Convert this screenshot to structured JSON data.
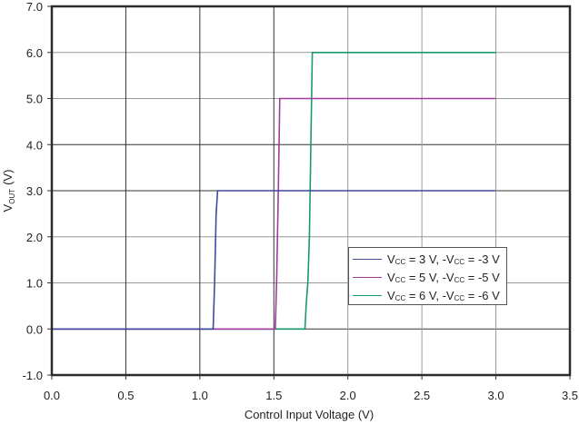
{
  "chart_data": {
    "type": "line",
    "title": "",
    "xlabel": "Control Input Voltage (V)",
    "ylabel": "V_OUT (V)",
    "ylabel_main": "V",
    "ylabel_sub": "OUT",
    "ylabel_suffix": "(V)",
    "xlim": [
      0.0,
      3.5
    ],
    "ylim": [
      -1.0,
      7.0
    ],
    "x_ticks": [
      "0.0",
      "0.5",
      "1.0",
      "1.5",
      "2.0",
      "2.5",
      "3.0",
      "3.5"
    ],
    "y_ticks": [
      "-1.0",
      "0.0",
      "1.0",
      "2.0",
      "3.0",
      "4.0",
      "5.0",
      "6.0",
      "7.0"
    ],
    "grid": true,
    "legend_position": "inside lower right",
    "series": [
      {
        "name": "VCC = 3 V, -VCC = -3 V",
        "color": "#3f4a9c",
        "x": [
          0.0,
          1.09,
          1.1,
          1.11,
          1.12,
          3.0
        ],
        "y": [
          0.0,
          0.0,
          1.0,
          2.5,
          3.0,
          3.0
        ]
      },
      {
        "name": "VCC = 5 V, -VCC = -5 V",
        "color": "#a03c9c",
        "x": [
          0.0,
          1.51,
          1.52,
          1.53,
          1.54,
          3.0
        ],
        "y": [
          0.0,
          0.0,
          1.2,
          3.0,
          5.0,
          5.0
        ]
      },
      {
        "name": "VCC = 6 V, -VCC = -6 V",
        "color": "#1a9a6a",
        "x": [
          0.0,
          1.71,
          1.72,
          1.73,
          1.74,
          1.75,
          1.76,
          3.0
        ],
        "y": [
          0.0,
          0.0,
          0.6,
          1.0,
          2.0,
          4.0,
          6.0,
          6.0
        ]
      }
    ],
    "legend": [
      {
        "main": "V",
        "sub": "CC",
        "mid": " = 3 V, -V",
        "sub2": "CC",
        "end": " = -3 V"
      },
      {
        "main": "V",
        "sub": "CC",
        "mid": " = 5 V, -V",
        "sub2": "CC",
        "end": " = -5 V"
      },
      {
        "main": "V",
        "sub": "CC",
        "mid": " = 6 V, -V",
        "sub2": "CC",
        "end": " = -6 V"
      }
    ]
  }
}
